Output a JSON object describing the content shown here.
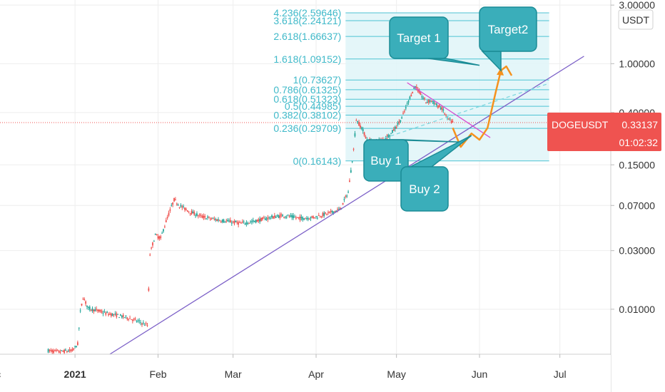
{
  "chart_data": {
    "type": "candlestick",
    "symbol": "DOGEUSDT",
    "quote_currency": "USDT",
    "y_scale": "log",
    "ylim": [
      0.0043,
      3.3
    ],
    "xlim": [
      "2020-12-04",
      "2021-07-20"
    ],
    "grid": true,
    "x_ticks": [
      {
        "date": "2020-12-01",
        "label": "Dec"
      },
      {
        "date": "2021-01-01",
        "label": "2021",
        "bold": true
      },
      {
        "date": "2021-02-01",
        "label": "Feb"
      },
      {
        "date": "2021-03-01",
        "label": "Mar"
      },
      {
        "date": "2021-04-01",
        "label": "Apr"
      },
      {
        "date": "2021-05-01",
        "label": "May"
      },
      {
        "date": "2021-06-01",
        "label": "Jun"
      },
      {
        "date": "2021-07-01",
        "label": "Jul"
      }
    ],
    "y_ticks": [
      {
        "value": 3.0,
        "label": "3.00000"
      },
      {
        "value": 1.0,
        "label": "1.00000"
      },
      {
        "value": 0.4,
        "label": "0.40000"
      },
      {
        "value": 0.15,
        "label": "0.15000"
      },
      {
        "value": 0.07,
        "label": "0.07000"
      },
      {
        "value": 0.03,
        "label": "0.03000"
      },
      {
        "value": 0.01,
        "label": "0.01000"
      }
    ],
    "price_series": [
      [
        "2020-12-22",
        0.0046
      ],
      [
        "2020-12-26",
        0.0045
      ],
      [
        "2020-12-31",
        0.0046
      ],
      [
        "2021-01-02",
        0.0052
      ],
      [
        "2021-01-03",
        0.0095
      ],
      [
        "2021-01-04",
        0.0125
      ],
      [
        "2021-01-06",
        0.0102
      ],
      [
        "2021-01-09",
        0.0098
      ],
      [
        "2021-01-13",
        0.0092
      ],
      [
        "2021-01-17",
        0.0089
      ],
      [
        "2021-01-21",
        0.0085
      ],
      [
        "2021-01-25",
        0.0079
      ],
      [
        "2021-01-28",
        0.0074
      ],
      [
        "2021-01-29",
        0.028
      ],
      [
        "2021-01-30",
        0.034
      ],
      [
        "2021-01-31",
        0.04
      ],
      [
        "2021-02-02",
        0.038
      ],
      [
        "2021-02-04",
        0.052
      ],
      [
        "2021-02-07",
        0.078
      ],
      [
        "2021-02-09",
        0.07
      ],
      [
        "2021-02-13",
        0.062
      ],
      [
        "2021-02-17",
        0.057
      ],
      [
        "2021-02-22",
        0.054
      ],
      [
        "2021-02-27",
        0.052
      ],
      [
        "2021-03-04",
        0.05
      ],
      [
        "2021-03-09",
        0.052
      ],
      [
        "2021-03-15",
        0.056
      ],
      [
        "2021-03-20",
        0.058
      ],
      [
        "2021-03-26",
        0.055
      ],
      [
        "2021-03-31",
        0.056
      ],
      [
        "2021-04-05",
        0.06
      ],
      [
        "2021-04-10",
        0.065
      ],
      [
        "2021-04-13",
        0.09
      ],
      [
        "2021-04-15",
        0.2
      ],
      [
        "2021-04-16",
        0.35
      ],
      [
        "2021-04-18",
        0.3
      ],
      [
        "2021-04-20",
        0.24
      ],
      [
        "2021-04-23",
        0.23
      ],
      [
        "2021-04-26",
        0.24
      ],
      [
        "2021-04-29",
        0.27
      ],
      [
        "2021-05-01",
        0.31
      ],
      [
        "2021-05-03",
        0.36
      ],
      [
        "2021-05-06",
        0.53
      ],
      [
        "2021-05-08",
        0.66
      ],
      [
        "2021-05-10",
        0.56
      ],
      [
        "2021-05-12",
        0.49
      ],
      [
        "2021-05-14",
        0.5
      ],
      [
        "2021-05-16",
        0.46
      ],
      [
        "2021-05-18",
        0.43
      ],
      [
        "2021-05-20",
        0.36
      ],
      [
        "2021-05-22",
        0.33
      ]
    ],
    "fib_levels": [
      {
        "ratio": 0,
        "value": 0.16143,
        "label": "0(0.16143)"
      },
      {
        "ratio": 0.236,
        "value": 0.29709,
        "label": "0.236(0.29709)"
      },
      {
        "ratio": 0.382,
        "value": 0.38102,
        "label": "0.382(0.38102)"
      },
      {
        "ratio": 0.5,
        "value": 0.44985,
        "label": "0.5(0.44985)"
      },
      {
        "ratio": 0.618,
        "value": 0.51323,
        "label": "0.618(0.51323)"
      },
      {
        "ratio": 0.786,
        "value": 0.61325,
        "label": "0.786(0.61325)"
      },
      {
        "ratio": 1,
        "value": 0.73627,
        "label": "1(0.73627)"
      },
      {
        "ratio": 1.618,
        "value": 1.09152,
        "label": "1.618(1.09152)"
      },
      {
        "ratio": 2.618,
        "value": 1.66637,
        "label": "2.618(1.66637)"
      },
      {
        "ratio": 3.618,
        "value": 2.24121,
        "label": "3.618(2.24121)"
      },
      {
        "ratio": 4.236,
        "value": 2.59646,
        "label": "4.236(2.59646)"
      }
    ],
    "fib_x_range": [
      "2021-04-12",
      "2021-06-27"
    ],
    "trend_lines": [
      {
        "name": "support",
        "color": "#7b5fc7",
        "from": [
          "2021-01-14",
          0.0043
        ],
        "to": [
          "2021-07-10",
          1.15
        ]
      },
      {
        "name": "resistance",
        "color": "#d84bd0",
        "from": [
          "2021-05-05",
          0.7
        ],
        "to": [
          "2021-06-05",
          0.25
        ]
      },
      {
        "name": "dashed-channel",
        "color": "#7fd8e0",
        "from": [
          "2021-04-22",
          0.23
        ],
        "to": [
          "2021-06-26",
          0.68
        ]
      }
    ],
    "projection_path": [
      [
        "2021-05-22",
        0.3
      ],
      [
        "2021-05-25",
        0.21
      ],
      [
        "2021-05-29",
        0.27
      ],
      [
        "2021-06-01",
        0.24
      ],
      [
        "2021-06-04",
        0.3
      ],
      [
        "2021-06-07",
        0.58
      ],
      [
        "2021-06-09",
        0.88
      ],
      [
        "2021-06-11",
        0.95
      ],
      [
        "2021-06-13",
        0.8
      ]
    ],
    "annotations": [
      {
        "text": "Target 1",
        "anchor": [
          "2021-06-01",
          0.97
        ]
      },
      {
        "text": "Target2",
        "anchor": [
          "2021-06-09",
          0.88
        ]
      },
      {
        "text": "Buy 1",
        "anchor": [
          "2021-05-25",
          0.23
        ]
      },
      {
        "text": "Buy 2",
        "anchor": [
          "2021-05-29",
          0.26
        ]
      }
    ],
    "price_tag": {
      "symbol": "DOGEUSDT",
      "value": "0.33137",
      "countdown": "01:02:32",
      "color": "#ef5350"
    }
  }
}
